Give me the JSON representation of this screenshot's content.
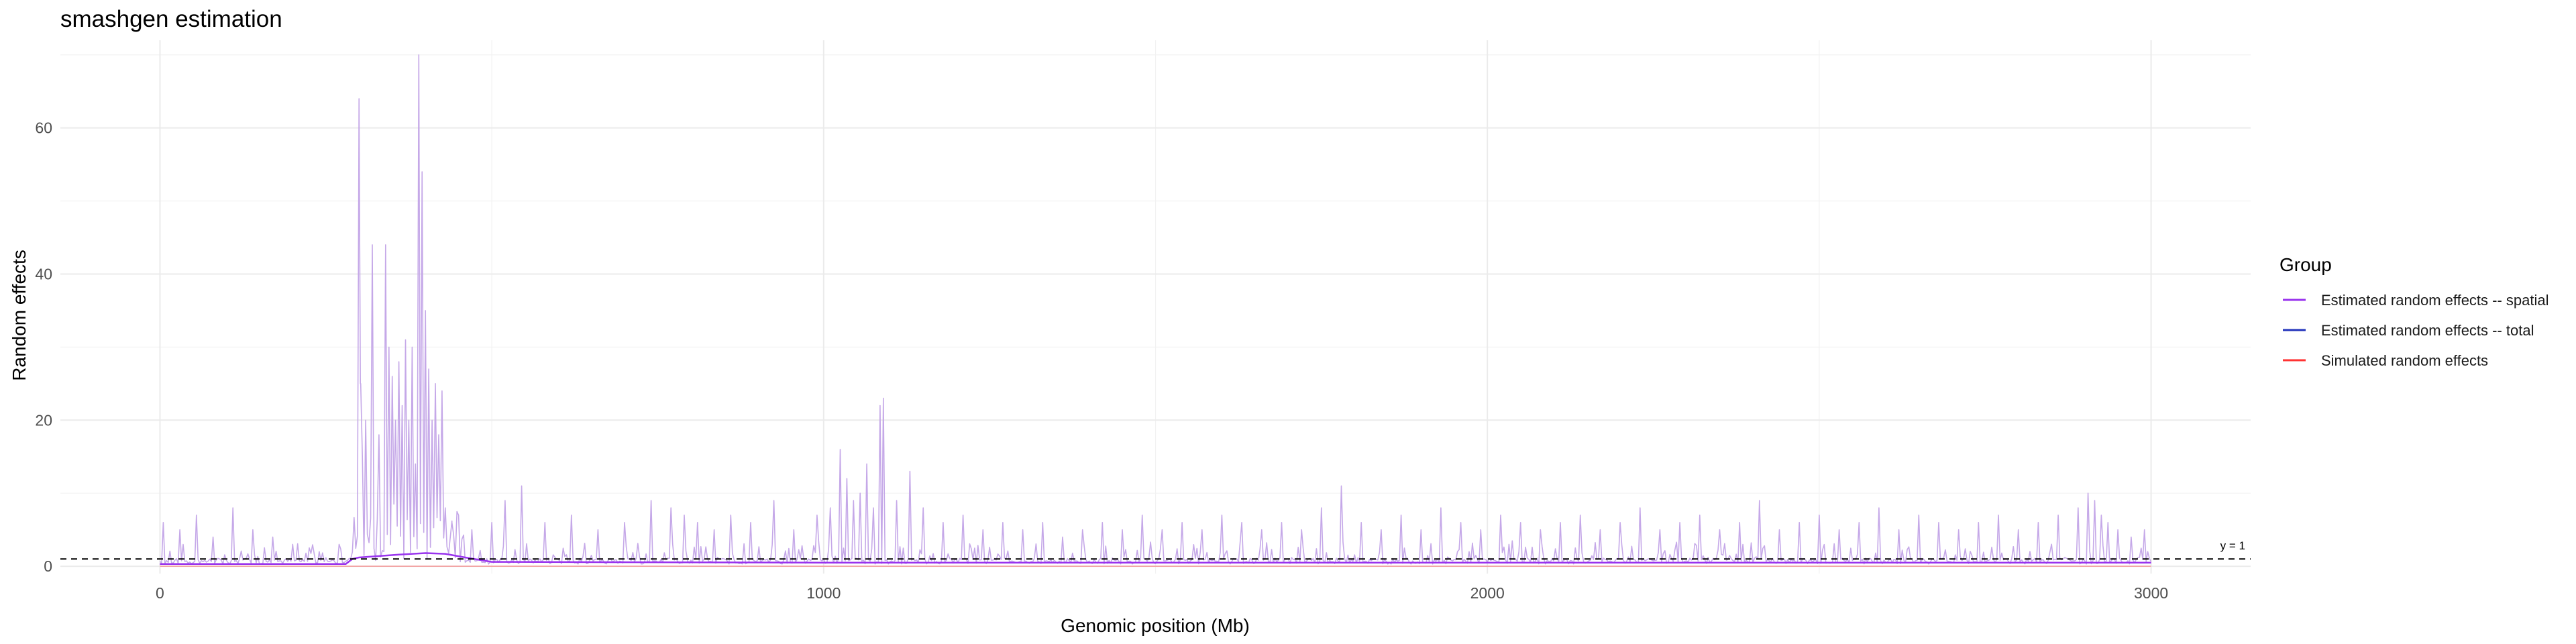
{
  "chart_data": {
    "type": "line",
    "title": "smashgen estimation",
    "xlabel": "Genomic position (Mb)",
    "ylabel": "Random effects",
    "xlim": [
      -150,
      3150
    ],
    "ylim": [
      -1,
      72
    ],
    "x_ticks": [
      0,
      1000,
      2000,
      3000
    ],
    "y_ticks": [
      0,
      20,
      40,
      60
    ],
    "grid": true,
    "legend": {
      "title": "Group",
      "position": "right",
      "entries": [
        {
          "label": "Estimated random effects -- spatial",
          "color": "#9933ee"
        },
        {
          "label": "Estimated random effects -- total",
          "color": "#2233bb"
        },
        {
          "label": "Simulated random effects",
          "color": "#ff3333"
        }
      ]
    },
    "reference_line": {
      "y": 1,
      "label": "y = 1",
      "style": "dashed"
    },
    "series": [
      {
        "name": "Estimated random effects -- spatial",
        "color": "#9933ee",
        "x": [
          0,
          280,
          290,
          300,
          330,
          360,
          400,
          430,
          460,
          500,
          1000,
          1500,
          2000,
          2500,
          3000
        ],
        "y": [
          0.3,
          0.3,
          1,
          1.2,
          1.4,
          1.6,
          1.8,
          1.7,
          1.2,
          0.6,
          0.5,
          0.5,
          0.5,
          0.5,
          0.5
        ]
      },
      {
        "name": "Estimated random effects -- total",
        "color": "#2233bb",
        "peaks_x": [
          5,
          30,
          55,
          80,
          110,
          140,
          170,
          200,
          240,
          270,
          300,
          302,
          305,
          310,
          320,
          330,
          340,
          345,
          350,
          355,
          360,
          365,
          370,
          375,
          380,
          385,
          390,
          395,
          400,
          405,
          410,
          415,
          420,
          425,
          430,
          440,
          450,
          470,
          500,
          520,
          545,
          580,
          620,
          660,
          700,
          740,
          770,
          790,
          810,
          835,
          860,
          890,
          925,
          955,
          990,
          1010,
          1025,
          1035,
          1045,
          1055,
          1065,
          1075,
          1085,
          1090,
          1110,
          1130,
          1150,
          1180,
          1210,
          1240,
          1270,
          1300,
          1330,
          1360,
          1390,
          1420,
          1450,
          1480,
          1510,
          1540,
          1570,
          1600,
          1630,
          1660,
          1690,
          1720,
          1750,
          1780,
          1810,
          1840,
          1870,
          1900,
          1930,
          1960,
          1990,
          2020,
          2050,
          2080,
          2110,
          2140,
          2170,
          2200,
          2230,
          2260,
          2290,
          2320,
          2350,
          2380,
          2410,
          2440,
          2470,
          2500,
          2530,
          2560,
          2590,
          2620,
          2650,
          2680,
          2710,
          2740,
          2770,
          2800,
          2830,
          2860,
          2890,
          2905,
          2915,
          2925,
          2935,
          2950,
          2970,
          2990
        ],
        "peaks_y": [
          6,
          5,
          7,
          4,
          8,
          5,
          4,
          3,
          2,
          3,
          64,
          25,
          15,
          20,
          44,
          18,
          44,
          30,
          26,
          20,
          28,
          22,
          31,
          20,
          30,
          14,
          70,
          54,
          35,
          27,
          20,
          25,
          18,
          24,
          8,
          6,
          7,
          5,
          6,
          9,
          11,
          6,
          7,
          5,
          6,
          9,
          8,
          7,
          6,
          5,
          7,
          6,
          9,
          5,
          7,
          8,
          16,
          12,
          9,
          10,
          14,
          8,
          22,
          23,
          9,
          13,
          8,
          6,
          7,
          5,
          6,
          5,
          6,
          4,
          5,
          6,
          5,
          7,
          5,
          6,
          5,
          7,
          6,
          5,
          6,
          5,
          8,
          11,
          6,
          5,
          7,
          5,
          8,
          6,
          5,
          7,
          6,
          5,
          6,
          7,
          5,
          6,
          8,
          5,
          6,
          7,
          5,
          6,
          9,
          5,
          6,
          7,
          5,
          6,
          8,
          5,
          7,
          6,
          5,
          6,
          7,
          5,
          6,
          7,
          8,
          10,
          9,
          7,
          6,
          5,
          4,
          5
        ]
      },
      {
        "name": "Simulated random effects",
        "color": "#ff3333",
        "x": [
          0,
          3000
        ],
        "y": [
          0,
          0
        ]
      }
    ]
  }
}
